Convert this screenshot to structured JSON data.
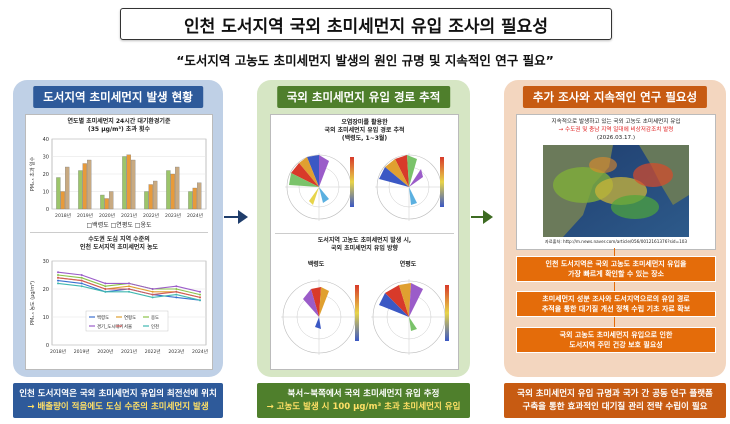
{
  "title": "인천 도서지역 국외 초미세먼지 유입 조사의 필요성",
  "subtitle": "“도서지역 고농도 초미세먼지 발생의 원인 규명 및 지속적인 연구 필요”",
  "colors": {
    "blue": "#2e5a9a",
    "green": "#4f7f2c",
    "orange": "#c75b12",
    "orange_box": "#e46c0a"
  },
  "panel1": {
    "heading": "도서지역 초미세먼지 발생 현황",
    "chart1_title": [
      "연도별 초미세먼지 24시간 대기환경기준",
      "(35 μg/m³) 초과 횟수"
    ],
    "chart1_legend": "□백령도 □연평도 □옹도",
    "chart2_title": [
      "수도권 도심 지역 수준의",
      "인천 도서지역 초미세먼지 농도"
    ],
    "chart2_legend": [
      "백령도",
      "연평도",
      "옹도",
      "경기_도시대기",
      "서울",
      "인천"
    ],
    "bottom_line1": "인천 도서지역은 국외 초미세먼지 유입의 최전선에 위치",
    "bottom_line2": "→ 배출량이 적음에도 도심 수준의 초미세먼지 발생"
  },
  "panel2": {
    "heading": "국외 초미세먼지 유입 경로 추적",
    "fig1_title": [
      "오염장미를 활용한",
      "국외 초미세먼지 유입 경로 추적",
      "(백령도, 1~3월)"
    ],
    "fig2_title": [
      "도서지역 고농도 초미세먼지 발생 시,",
      "국외 초미세먼지 유입 방향"
    ],
    "fig2_labels": [
      "백령도",
      "연평도"
    ],
    "bottom_line1": "북서~북쪽에서 국외 초미세먼지 유입 추정",
    "bottom_line2": "→ 고농도 발생 시 100 μg/m³ 초과 초미세먼지 유입"
  },
  "panel3": {
    "heading": "추가 조사와 지속적인 연구 필요성",
    "news_line1": "지속적으로 발생하고 있는 국외 고농도 초미세먼지 유입",
    "news_line2": "→ 수도권 및 충남 지역 일대에 비상저감조치 발령",
    "news_date": "(2026.03.17.)",
    "source": "자료출처: http://m.news.naver.com/article/056/0012161376?sid=103",
    "box1": [
      "인천 도서지역은 국외 고농도 초미세먼지 유입을",
      "가장 빠르게 확인할 수 있는 장소"
    ],
    "box2": [
      "초미세먼지 성분 조사와 도서지역으로의 유입 경로",
      "추적을 통한 대기질 개선 정책 수립 기초 자료 확보"
    ],
    "box3": [
      "국외 고농도 초미세먼지 유입으로 인한",
      "도서지역 주민 건강 보호 필요성"
    ],
    "bottom_line1": "국외 초미세먼지 유입 규명과 국가 간 공동 연구 플랫폼",
    "bottom_line2": "구축을 통한 효과적인 대기질 관리 전략 수립이 필요"
  },
  "chart_data": [
    {
      "type": "bar",
      "categories": [
        "2018년",
        "2019년",
        "2020년",
        "2021년",
        "2022년",
        "2023년",
        "2024년"
      ],
      "series": [
        {
          "name": "백령도",
          "values": [
            18,
            22,
            8,
            30,
            10,
            22,
            10
          ]
        },
        {
          "name": "연평도",
          "values": [
            10,
            26,
            6,
            31,
            14,
            20,
            12
          ]
        },
        {
          "name": "옹도",
          "values": [
            24,
            28,
            10,
            28,
            16,
            24,
            15
          ]
        }
      ],
      "ylabel": "PM₂.₅ 초과 일수",
      "ylim": [
        0,
        40
      ]
    },
    {
      "type": "line",
      "categories": [
        "2018년",
        "2019년",
        "2020년",
        "2021년",
        "2022년",
        "2023년",
        "2024년"
      ],
      "series": [
        {
          "name": "백령도",
          "values": [
            23,
            22,
            19,
            20,
            18,
            17,
            16
          ]
        },
        {
          "name": "연평도",
          "values": [
            24,
            23,
            20,
            21,
            19,
            19,
            17
          ]
        },
        {
          "name": "옹도",
          "values": [
            25,
            24,
            21,
            22,
            20,
            20,
            18
          ]
        },
        {
          "name": "경기_도시대기",
          "values": [
            26,
            25,
            22,
            22,
            20,
            21,
            19
          ]
        },
        {
          "name": "서울",
          "values": [
            24,
            23,
            20,
            20,
            18,
            19,
            17
          ]
        },
        {
          "name": "인천",
          "values": [
            22,
            21,
            19,
            19,
            17,
            18,
            16
          ]
        }
      ],
      "ylabel": "PM₂.₅ 농도 (μg/m³)",
      "ylim": [
        0,
        30
      ]
    }
  ]
}
